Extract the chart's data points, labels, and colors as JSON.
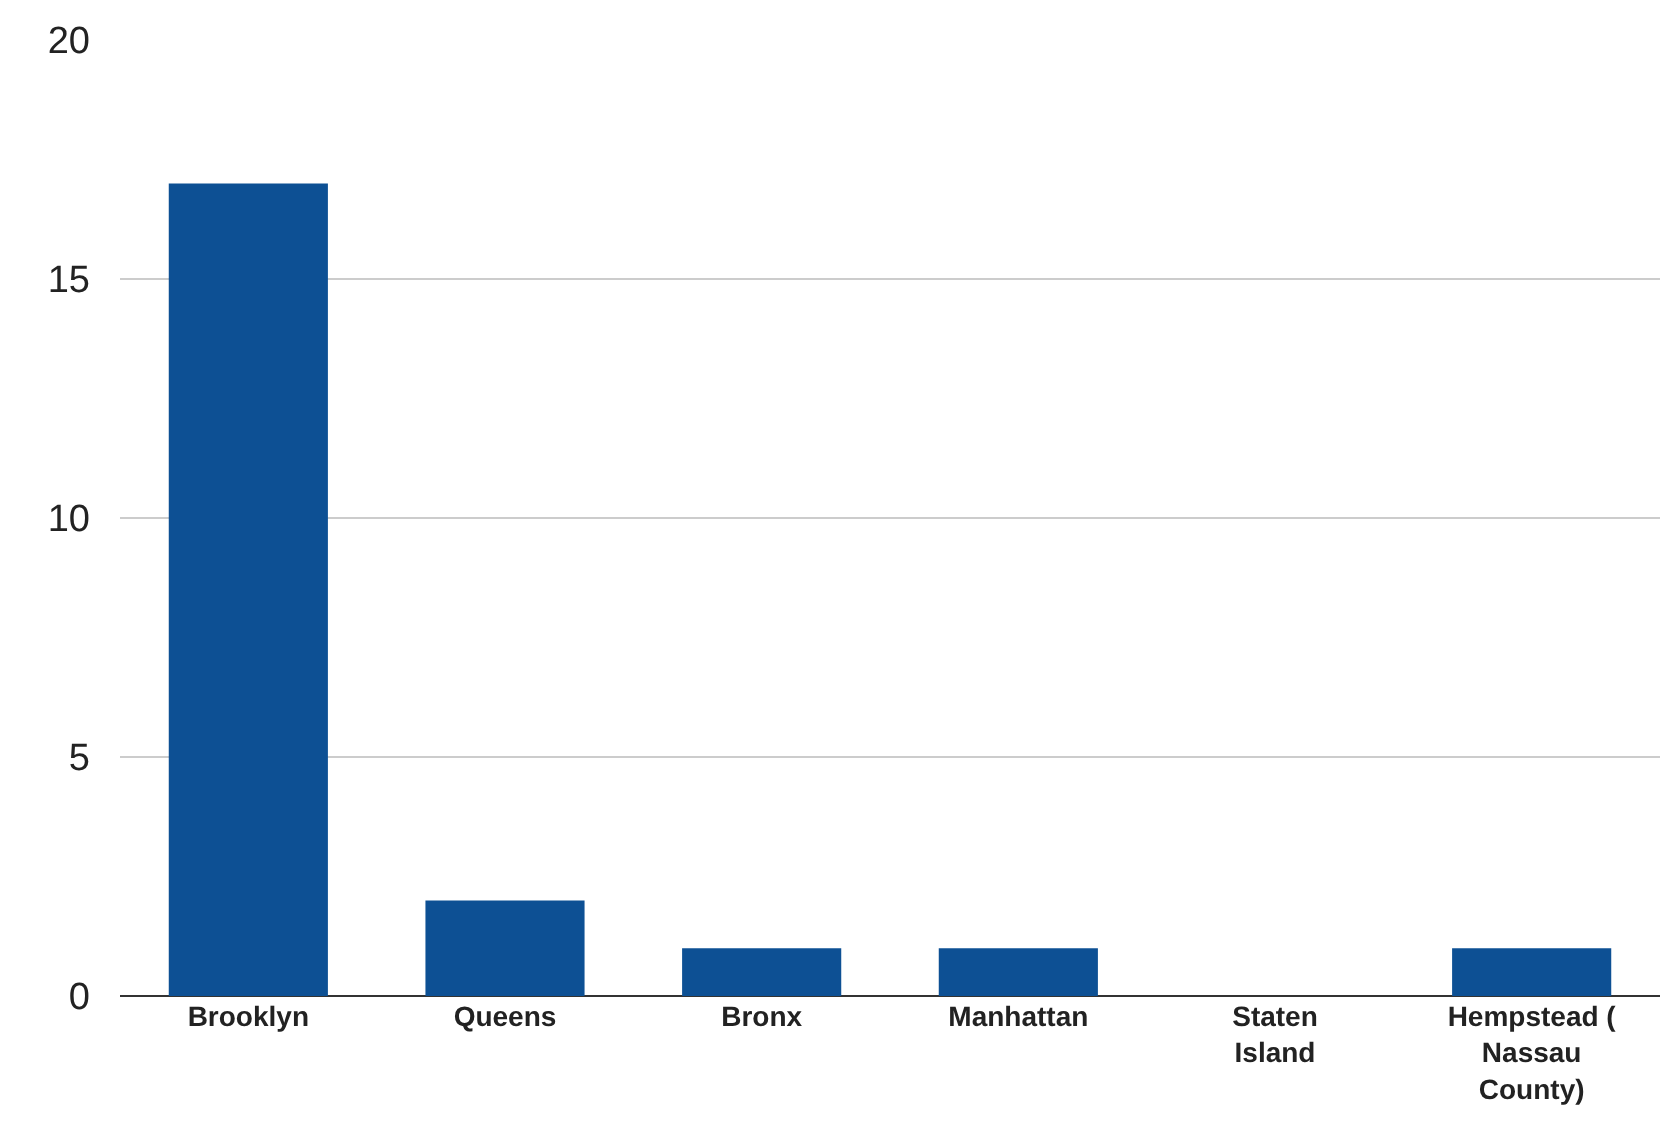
{
  "chart_data": {
    "type": "bar",
    "categories": [
      "Brooklyn",
      "Queens",
      "Bronx",
      "Manhattan",
      "Staten Island",
      "Hempstead ( Nassau County)"
    ],
    "values": [
      17,
      2,
      1,
      1,
      0,
      1
    ],
    "color": "#0d5094",
    "ylim": [
      0,
      20
    ],
    "yticks": [
      0,
      5,
      10,
      15,
      20
    ],
    "grid": "y"
  }
}
